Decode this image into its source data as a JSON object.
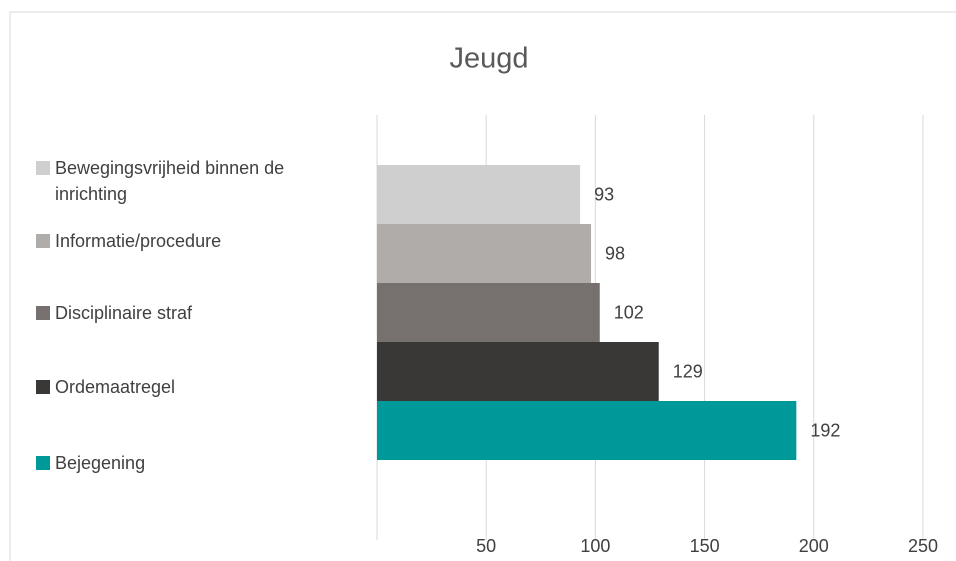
{
  "chart_data": {
    "type": "barh",
    "title": "Jeugd",
    "categories": [
      "Bewegingsvrijheid binnen de inrichting",
      "Informatie/procedure",
      "Disciplinaire straf",
      "Ordemaatregel",
      "Bejegening"
    ],
    "values": [
      93,
      98,
      102,
      129,
      192
    ],
    "colors": [
      "#d0cfcf",
      "#afacaa",
      "#76716e",
      "#3a3837",
      "#009999"
    ],
    "xlim": [
      0,
      250
    ],
    "xticks": [
      50,
      100,
      150,
      200,
      250
    ],
    "grid": true
  }
}
